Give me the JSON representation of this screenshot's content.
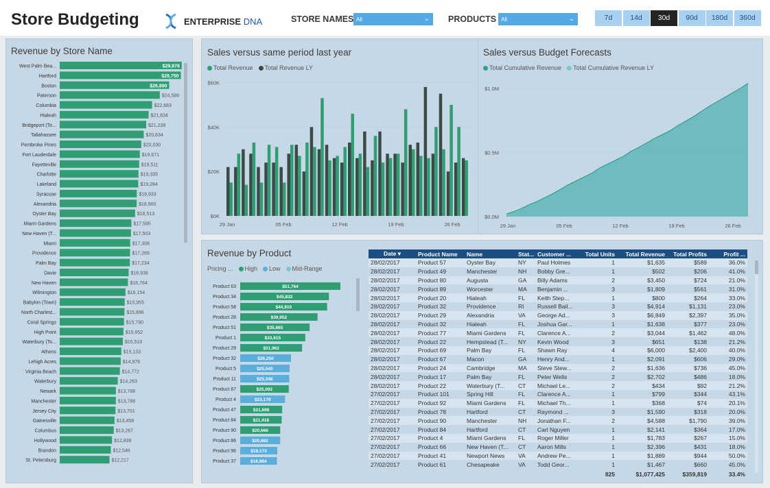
{
  "header": {
    "title": "Store Budgeting",
    "brand_strong": "ENTERPRISE",
    "brand_light": "DNA",
    "store_label": "STORE NAMES",
    "store_value": "All",
    "product_label": "PRODUCTS",
    "product_value": "All",
    "periods": [
      "7d",
      "14d",
      "30d",
      "90d",
      "180d",
      "360d"
    ],
    "active_period": "30d"
  },
  "colors": {
    "green": "#2f9e73",
    "dark": "#3b4a46",
    "teal": "#5fb3b8",
    "blue": "#5aaedb",
    "navy": "#1b4f84"
  },
  "store_card": {
    "title": "Revenue by Store Name",
    "chart_data": {
      "type": "bar",
      "orientation": "horizontal",
      "categories": [
        "West Palm Bea...",
        "Hartford",
        "Boston",
        "Paterson",
        "Columbia",
        "Hialeah",
        "Bridgeport (To...",
        "Tallahassee",
        "Pembroke Pines",
        "Fort Lauderdale",
        "Fayetteville",
        "Charlotte",
        "Lakeland",
        "Syracuse",
        "Alexandria",
        "Oyster Bay",
        "Miami Gardens",
        "New Haven (T...",
        "Miami",
        "Providence",
        "Palm Bay",
        "Davie",
        "New Haven",
        "Wilmington",
        "Babylon (Town)",
        "North Charlest...",
        "Coral Springs",
        "High Point",
        "Waterbury (To...",
        "Athens",
        "Lehigh Acres",
        "Virginia Beach",
        "Waterbury",
        "Newark",
        "Manchester",
        "Jersey City",
        "Gainesville",
        "Columbus",
        "Hollywood",
        "Brandon",
        "St. Petersburg"
      ],
      "values": [
        29978,
        29750,
        26890,
        24586,
        22683,
        21834,
        21238,
        20634,
        20030,
        19671,
        19511,
        19335,
        19284,
        18933,
        18900,
        18513,
        17595,
        17503,
        17308,
        17269,
        17234,
        16938,
        16764,
        16154,
        15955,
        15896,
        15790,
        15652,
        15510,
        15133,
        14976,
        14772,
        14263,
        13788,
        13788,
        13701,
        13458,
        13267,
        12836,
        12546,
        12217
      ],
      "labels": [
        "$29,978",
        "$29,750",
        "$26,890",
        "$24,586",
        "$22,683",
        "$21,834",
        "$21,238",
        "$20,634",
        "$20,030",
        "$19,671",
        "$19,511",
        "$19,335",
        "$19,284",
        "$18,933",
        "$18,900",
        "$18,513",
        "$17,595",
        "$17,503",
        "$17,308",
        "$17,269",
        "$17,234",
        "$16,938",
        "$16,764",
        "$16,154",
        "$15,955",
        "$15,896",
        "$15,790",
        "$15,652",
        "$15,510",
        "$15,133",
        "$14,976",
        "$14,772",
        "$14,263",
        "$13,788",
        "$13,788",
        "$13,701",
        "$13,458",
        "$13,267",
        "$12,836",
        "$12,546",
        "$12,217"
      ]
    }
  },
  "sales_card": {
    "title": "Sales versus same period last year",
    "legend": [
      "Total Revenue",
      "Total Revenue LY"
    ],
    "chart_data": {
      "type": "bar",
      "y_ticks": [
        "$0K",
        "$20K",
        "$40K",
        "$60K"
      ],
      "ylim": [
        0,
        62000
      ],
      "x_ticks": [
        "29 Jan",
        "05 Feb",
        "12 Feb",
        "19 Feb",
        "26 Feb"
      ],
      "series": [
        {
          "name": "Total Revenue",
          "values": [
            15000,
            28000,
            14000,
            33000,
            15000,
            32000,
            31000,
            15000,
            32000,
            27000,
            33000,
            31000,
            53000,
            25000,
            27000,
            31000,
            46000,
            28000,
            22000,
            36000,
            24000,
            26000,
            28000,
            48000,
            30000,
            27000,
            26000,
            40000,
            30000,
            50000,
            40000,
            25000
          ]
        },
        {
          "name": "Total Revenue LY",
          "values": [
            22000,
            22000,
            30000,
            28000,
            22000,
            24000,
            24000,
            22000,
            28000,
            32000,
            20000,
            40000,
            30000,
            32000,
            26000,
            24000,
            33000,
            26000,
            38000,
            25000,
            38000,
            28000,
            28000,
            24000,
            32000,
            33000,
            58000,
            28000,
            55000,
            20000,
            24000,
            26000
          ]
        }
      ]
    }
  },
  "budget_card": {
    "title": "Sales versus Budget Forecasts",
    "legend": [
      "Total Cumulative Revenue",
      "Total Cumulative Revenue LY"
    ],
    "chart_data": {
      "type": "area",
      "y_ticks": [
        "$0.0M",
        "$0.5M",
        "$1.0M"
      ],
      "ylim": [
        0,
        1080000
      ],
      "x_ticks": [
        "29 Jan",
        "05 Feb",
        "12 Feb",
        "19 Feb",
        "26 Feb"
      ],
      "series": [
        {
          "name": "Total Cumulative Revenue",
          "values": [
            20000,
            40000,
            65000,
            95000,
            120000,
            150000,
            180000,
            215000,
            250000,
            280000,
            310000,
            340000,
            380000,
            410000,
            440000,
            470000,
            510000,
            540000,
            575000,
            610000,
            640000,
            670000,
            710000,
            745000,
            780000,
            820000,
            860000,
            895000,
            930000,
            965000,
            1000000,
            1040000
          ]
        },
        {
          "name": "Total Cumulative Revenue LY",
          "values": [
            18000,
            38000,
            62000,
            90000,
            116000,
            146000,
            176000,
            210000,
            245000,
            276000,
            306000,
            336000,
            375000,
            406000,
            436000,
            466000,
            505000,
            536000,
            570000,
            604000,
            635000,
            666000,
            705000,
            740000,
            775000,
            815000,
            853000,
            888000,
            924000,
            960000,
            995000,
            1035000
          ]
        }
      ]
    }
  },
  "product_card": {
    "title": "Revenue by Product",
    "pricing_label": "Pricing ...",
    "pricing_legend": [
      "High",
      "Low",
      "Mid-Range"
    ],
    "chart_data": {
      "type": "bar",
      "orientation": "horizontal",
      "categories": [
        "Product 63",
        "Product 34",
        "Product 58",
        "Product 28",
        "Product 51",
        "Product 1",
        "Product 29",
        "Product 32",
        "Product 5",
        "Product 11",
        "Product 67",
        "Product 4",
        "Product 47",
        "Product 84",
        "Product 90",
        "Product 86",
        "Product 96",
        "Product 37"
      ],
      "values": [
        51764,
        45832,
        44910,
        39952,
        35865,
        33615,
        31962,
        26250,
        25540,
        25348,
        25092,
        23179,
        21698,
        21418,
        20666,
        20682,
        19173,
        18984
      ],
      "labels": [
        "$51,764",
        "$45,832",
        "$44,910",
        "$39,952",
        "$35,865",
        "$33,615",
        "$31,962",
        "$26,250",
        "$25,540",
        "$25,348",
        "$25,092",
        "$23,179",
        "$21,698",
        "$21,418",
        "$20,666",
        "$20,682",
        "$19,173",
        "$18,984"
      ],
      "pricing": [
        "High",
        "High",
        "High",
        "High",
        "High",
        "High",
        "High",
        "Low",
        "Low",
        "Low",
        "High",
        "Low",
        "High",
        "High",
        "High",
        "Low",
        "Low",
        "Low"
      ]
    }
  },
  "table": {
    "columns": [
      "Date",
      "Product Name",
      "Name",
      "Stat...",
      "Customer ...",
      "Total Units",
      "Total Revenue",
      "Total Profits",
      "Profit ..."
    ],
    "rows": [
      [
        "28/02/2017",
        "Product 57",
        "Oyster Bay",
        "NY",
        "Paul Holmes",
        "1",
        "$1,635",
        "$589",
        "36.0%"
      ],
      [
        "28/02/2017",
        "Product 49",
        "Manchester",
        "NH",
        "Bobby Gre...",
        "1",
        "$502",
        "$206",
        "41.0%"
      ],
      [
        "28/02/2017",
        "Product 80",
        "Augusta",
        "GA",
        "Billy Adams",
        "2",
        "$3,450",
        "$724",
        "21.0%"
      ],
      [
        "28/02/2017",
        "Product 89",
        "Worcester",
        "MA",
        "Benjamin ...",
        "3",
        "$1,809",
        "$561",
        "31.0%"
      ],
      [
        "28/02/2017",
        "Product 20",
        "Hialeah",
        "FL",
        "Keith Step...",
        "1",
        "$800",
        "$264",
        "33.0%"
      ],
      [
        "28/02/2017",
        "Product 32",
        "Providence",
        "RI",
        "Russell Bail...",
        "3",
        "$4,914",
        "$1,131",
        "23.0%"
      ],
      [
        "28/02/2017",
        "Product 29",
        "Alexandria",
        "VA",
        "George Ad...",
        "3",
        "$6,849",
        "$2,397",
        "35.0%"
      ],
      [
        "28/02/2017",
        "Product 32",
        "Hialeah",
        "FL",
        "Joshua Gar...",
        "1",
        "$1,638",
        "$377",
        "23.0%"
      ],
      [
        "28/02/2017",
        "Product 77",
        "Miami Gardens",
        "FL",
        "Clarence A...",
        "2",
        "$3,044",
        "$1,462",
        "48.0%"
      ],
      [
        "28/02/2017",
        "Product 22",
        "Hempstead (T...",
        "NY",
        "Kevin Wood",
        "3",
        "$651",
        "$138",
        "21.2%"
      ],
      [
        "28/02/2017",
        "Product 69",
        "Palm Bay",
        "FL",
        "Shawn Ray",
        "4",
        "$6,000",
        "$2,400",
        "40.0%"
      ],
      [
        "28/02/2017",
        "Product 67",
        "Macon",
        "GA",
        "Henry And...",
        "1",
        "$2,091",
        "$606",
        "29.0%"
      ],
      [
        "28/02/2017",
        "Product 24",
        "Cambridge",
        "MA",
        "Steve Stew...",
        "2",
        "$1,636",
        "$736",
        "45.0%"
      ],
      [
        "28/02/2017",
        "Product 17",
        "Palm Bay",
        "FL",
        "Peter Wells",
        "2",
        "$2,702",
        "$486",
        "18.0%"
      ],
      [
        "28/02/2017",
        "Product 22",
        "Waterbury (T...",
        "CT",
        "Michael Le...",
        "2",
        "$434",
        "$92",
        "21.2%"
      ],
      [
        "27/02/2017",
        "Product 101",
        "Spring Hill",
        "FL",
        "Clarence A...",
        "1",
        "$799",
        "$344",
        "43.1%"
      ],
      [
        "27/02/2017",
        "Product 92",
        "Miami Gardens",
        "FL",
        "Michael Th...",
        "1",
        "$368",
        "$74",
        "20.1%"
      ],
      [
        "27/02/2017",
        "Product 78",
        "Hartford",
        "CT",
        "Raymond ...",
        "3",
        "$1,590",
        "$318",
        "20.0%"
      ],
      [
        "27/02/2017",
        "Product 90",
        "Manchester",
        "NH",
        "Jonathan F...",
        "2",
        "$4,588",
        "$1,790",
        "39.0%"
      ],
      [
        "27/02/2017",
        "Product 84",
        "Hartford",
        "CT",
        "Carl Nguyen",
        "1",
        "$2,141",
        "$364",
        "17.0%"
      ],
      [
        "27/02/2017",
        "Product 4",
        "Miami Gardens",
        "FL",
        "Roger Miller",
        "1",
        "$1,783",
        "$267",
        "15.0%"
      ],
      [
        "27/02/2017",
        "Product 66",
        "New Haven (T...",
        "CT",
        "Aaron Mills",
        "1",
        "$2,396",
        "$431",
        "18.0%"
      ],
      [
        "27/02/2017",
        "Product 41",
        "Newport News",
        "VA",
        "Andrew Pe...",
        "1",
        "$1,889",
        "$944",
        "50.0%"
      ],
      [
        "27/02/2017",
        "Product 61",
        "Chesapeake",
        "VA",
        "Todd Geor...",
        "1",
        "$1,467",
        "$660",
        "45.0%"
      ]
    ],
    "totals": [
      "",
      "",
      "",
      "",
      "",
      "825",
      "$1,077,425",
      "$359,819",
      "33.4%"
    ]
  }
}
